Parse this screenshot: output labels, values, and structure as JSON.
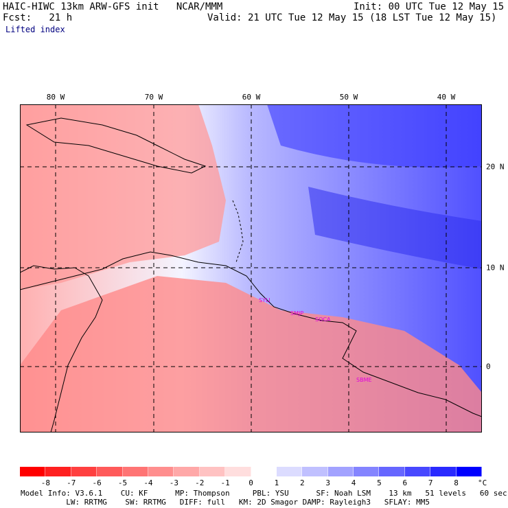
{
  "header": {
    "title": "HAIC-HIWC 13km ARW-GFS init   NCAR/MMM",
    "init": "Init: 00 UTC Tue 12 May 15",
    "fcst": "Fcst:   21 h",
    "valid": "Valid: 21 UTC Tue 12 May 15 (18 LST Tue 12 May 15)",
    "field": "Lifted index"
  },
  "map": {
    "lon_labels": [
      "80 W",
      "70 W",
      "60 W",
      "50 W",
      "40 W"
    ],
    "lat_labels": [
      "20 N",
      "10 N",
      "0"
    ],
    "stations": [
      "SYLI",
      "SMJP",
      "SOCA",
      "SBME"
    ]
  },
  "colorbar": {
    "labels": [
      "-8",
      "-7",
      "-6",
      "-5",
      "-4",
      "-3",
      "-2",
      "-1",
      "0",
      "1",
      "2",
      "3",
      "4",
      "5",
      "6",
      "7",
      "8"
    ],
    "unit": "°C",
    "colors": [
      "#ff0000",
      "#ff2020",
      "#ff4040",
      "#ff5a5a",
      "#ff7474",
      "#ff8e8e",
      "#ffa8a8",
      "#ffc2c2",
      "#ffdede",
      "#ffffff",
      "#dcdcff",
      "#c0c0ff",
      "#a2a2ff",
      "#8484ff",
      "#6666ff",
      "#4848ff",
      "#2a2aff",
      "#0000ff"
    ]
  },
  "footer": {
    "line1": "Model Info: V3.6.1    CU: KF      MP: Thompson     PBL: YSU      SF: Noah LSM    13 km   51 levels   60 sec",
    "line2": "          LW: RRTMG    SW: RRTMG   DIFF: full   KM: 2D Smagor DAMP: Rayleigh3   SFLAY: MM5"
  }
}
